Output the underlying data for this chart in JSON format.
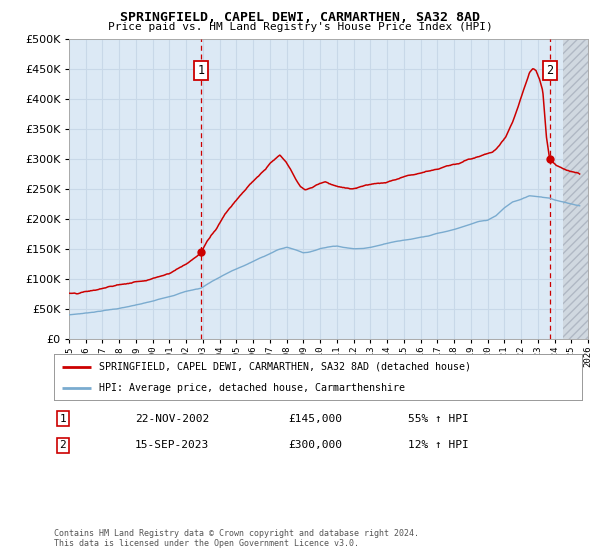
{
  "title": "SPRINGFIELD, CAPEL DEWI, CARMARTHEN, SA32 8AD",
  "subtitle": "Price paid vs. HM Land Registry's House Price Index (HPI)",
  "legend_line1": "SPRINGFIELD, CAPEL DEWI, CARMARTHEN, SA32 8AD (detached house)",
  "legend_line2": "HPI: Average price, detached house, Carmarthenshire",
  "annotation1_date": "22-NOV-2002",
  "annotation1_price": "£145,000",
  "annotation1_hpi": "55% ↑ HPI",
  "annotation2_date": "15-SEP-2023",
  "annotation2_price": "£300,000",
  "annotation2_hpi": "12% ↑ HPI",
  "footnote1": "Contains HM Land Registry data © Crown copyright and database right 2024.",
  "footnote2": "This data is licensed under the Open Government Licence v3.0.",
  "xmin": 1995,
  "xmax": 2026,
  "ymin": 0,
  "ymax": 500000,
  "yticks": [
    0,
    50000,
    100000,
    150000,
    200000,
    250000,
    300000,
    350000,
    400000,
    450000,
    500000
  ],
  "hpi_color": "#7aabcf",
  "price_color": "#cc0000",
  "bg_color": "#dce9f5",
  "grid_color": "#c8d8e8",
  "vline_color": "#cc0000",
  "box_color": "#cc0000",
  "sale1_x": 2002.88,
  "sale1_y": 145000,
  "sale2_x": 2023.71,
  "sale2_y": 300000,
  "hatch_start": 2024.5
}
